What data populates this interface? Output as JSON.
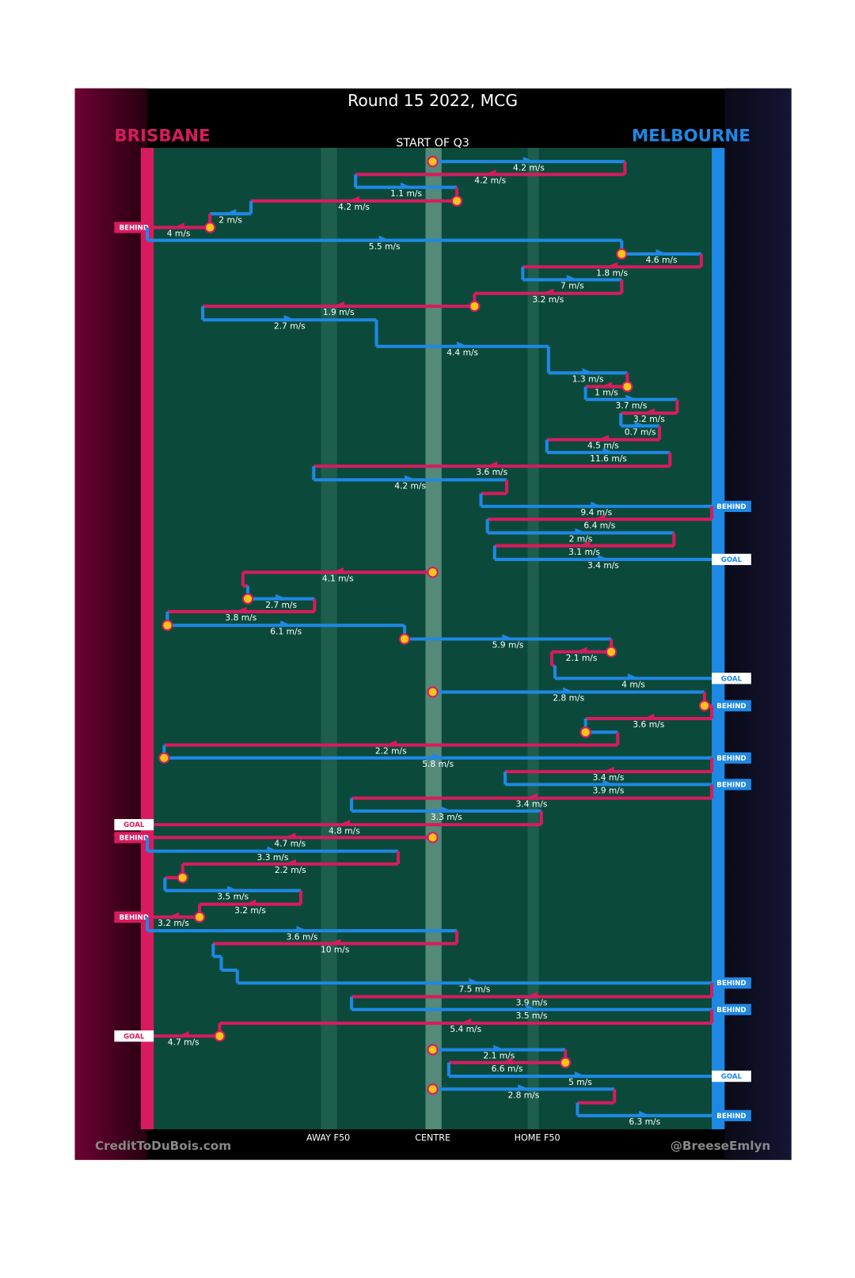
{
  "header": {
    "title": "Round 15 2022, MCG",
    "subtitle": "START OF Q3",
    "left_team": "BRISBANE",
    "right_team": "MELBOURNE"
  },
  "zones": [
    "AWAY F50",
    "CENTRE",
    "HOME F50"
  ],
  "footer": {
    "left": "CreditToDuBois.com",
    "right": "@BreeseEmlyn"
  },
  "moves": [
    "4.2 m/s",
    "4.2 m/s",
    "1.1 m/s",
    "4.2 m/s",
    "2 m/s",
    "4 m/s",
    "5.5 m/s",
    "4.6 m/s",
    "1.8 m/s",
    "7 m/s",
    "3.2 m/s",
    "1.9 m/s",
    "2.7 m/s",
    "4.4 m/s",
    "1.3 m/s",
    "1 m/s",
    "3.7 m/s",
    "3.2 m/s",
    "0.7 m/s",
    "4.5 m/s",
    "11.6 m/s",
    "3.6 m/s",
    "4.2 m/s",
    "9.4 m/s",
    "6.4 m/s",
    "2 m/s",
    "3.1 m/s",
    "3.4 m/s",
    "4.1 m/s",
    "2.7 m/s",
    "3.8 m/s",
    "6.1 m/s",
    "5.9 m/s",
    "2.1 m/s",
    "4 m/s",
    "2.8 m/s",
    "3.6 m/s",
    "2.2 m/s",
    "5.8 m/s",
    "3.4 m/s",
    "3.9 m/s",
    "3.4 m/s",
    "3.3 m/s",
    "4.8 m/s",
    "4.7 m/s",
    "3.3 m/s",
    "2.2 m/s",
    "3.5 m/s",
    "3.2 m/s",
    "3.2 m/s",
    "3.6 m/s",
    "10 m/s",
    "7.5 m/s",
    "3.9 m/s",
    "3.5 m/s",
    "5.4 m/s",
    "4.7 m/s",
    "2.1 m/s",
    "6.6 m/s",
    "5 m/s",
    "2.8 m/s",
    "6.3 m/s"
  ],
  "results": [
    "BEHIND",
    "BEHIND",
    "GOAL",
    "GOAL",
    "BEHIND",
    "BEHIND",
    "BEHIND",
    "GOAL",
    "BEHIND",
    "BEHIND",
    "BEHIND",
    "BEHIND",
    "GOAL",
    "GOAL",
    "BEHIND"
  ]
}
